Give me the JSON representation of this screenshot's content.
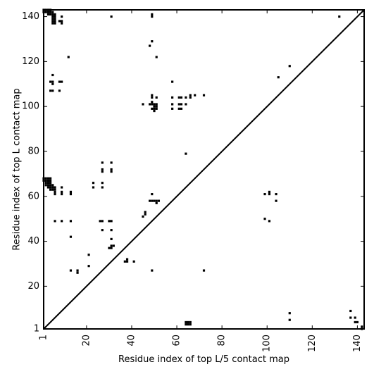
{
  "chart_data": {
    "type": "scatter",
    "title": "",
    "xlabel": "Residue index of top L/5 contact map",
    "ylabel": "Residue index of top L contact map",
    "xlim": [
      1,
      143
    ],
    "ylim": [
      1,
      143
    ],
    "x_ticks": [
      1,
      20,
      40,
      60,
      80,
      100,
      120,
      140
    ],
    "y_ticks": [
      1,
      20,
      40,
      60,
      80,
      100,
      120,
      140
    ],
    "grid": false,
    "diagonal": true,
    "marker_color": "#000000",
    "series": [
      {
        "points": [
          [
            1,
            143
          ],
          [
            2,
            143
          ],
          [
            3,
            143
          ],
          [
            4,
            143
          ],
          [
            1,
            142
          ],
          [
            2,
            142
          ],
          [
            3,
            142
          ],
          [
            4,
            142
          ],
          [
            5,
            142
          ],
          [
            3,
            141
          ],
          [
            4,
            141
          ],
          [
            5,
            141
          ],
          [
            6,
            141
          ],
          [
            5,
            140
          ],
          [
            6,
            140
          ],
          [
            5,
            139
          ],
          [
            6,
            139
          ],
          [
            5,
            138
          ],
          [
            6,
            138
          ],
          [
            5,
            137
          ],
          [
            6,
            137
          ],
          [
            9,
            140
          ],
          [
            9,
            138
          ],
          [
            9,
            137
          ],
          [
            8,
            138
          ],
          [
            31,
            140
          ],
          [
            49,
            141
          ],
          [
            49,
            140
          ],
          [
            132,
            140
          ],
          [
            49,
            129
          ],
          [
            48,
            127
          ],
          [
            51,
            122
          ],
          [
            12,
            122
          ],
          [
            5,
            114
          ],
          [
            5,
            111
          ],
          [
            4,
            111
          ],
          [
            5,
            110
          ],
          [
            9,
            111
          ],
          [
            8,
            111
          ],
          [
            4,
            107
          ],
          [
            5,
            107
          ],
          [
            8,
            107
          ],
          [
            110,
            118
          ],
          [
            105,
            113
          ],
          [
            58,
            111
          ],
          [
            49,
            105
          ],
          [
            49,
            104
          ],
          [
            51,
            104
          ],
          [
            58,
            104
          ],
          [
            61,
            104
          ],
          [
            62,
            104
          ],
          [
            64,
            104
          ],
          [
            66,
            105
          ],
          [
            66,
            104
          ],
          [
            68,
            105
          ],
          [
            72,
            105
          ],
          [
            45,
            101
          ],
          [
            48,
            101
          ],
          [
            49,
            101
          ],
          [
            50,
            101
          ],
          [
            51,
            101
          ],
          [
            58,
            101
          ],
          [
            61,
            101
          ],
          [
            62,
            101
          ],
          [
            64,
            101
          ],
          [
            49,
            102
          ],
          [
            50,
            100
          ],
          [
            51,
            100
          ],
          [
            50,
            99
          ],
          [
            51,
            99
          ],
          [
            49,
            99
          ],
          [
            50,
            98
          ],
          [
            58,
            99
          ],
          [
            61,
            99
          ],
          [
            62,
            99
          ],
          [
            64,
            79
          ],
          [
            1,
            68
          ],
          [
            2,
            68
          ],
          [
            3,
            68
          ],
          [
            4,
            68
          ],
          [
            1,
            67
          ],
          [
            2,
            67
          ],
          [
            3,
            67
          ],
          [
            4,
            67
          ],
          [
            2,
            66
          ],
          [
            3,
            66
          ],
          [
            4,
            66
          ],
          [
            2,
            65
          ],
          [
            3,
            65
          ],
          [
            4,
            65
          ],
          [
            5,
            65
          ],
          [
            3,
            64
          ],
          [
            4,
            64
          ],
          [
            5,
            64
          ],
          [
            6,
            64
          ],
          [
            4,
            63
          ],
          [
            5,
            63
          ],
          [
            6,
            63
          ],
          [
            6,
            62
          ],
          [
            6,
            61
          ],
          [
            9,
            64
          ],
          [
            9,
            62
          ],
          [
            9,
            61
          ],
          [
            13,
            62
          ],
          [
            13,
            61
          ],
          [
            23,
            66
          ],
          [
            23,
            64
          ],
          [
            27,
            66
          ],
          [
            27,
            64
          ],
          [
            27,
            75
          ],
          [
            27,
            72
          ],
          [
            27,
            71
          ],
          [
            31,
            75
          ],
          [
            31,
            72
          ],
          [
            31,
            71
          ],
          [
            49,
            61
          ],
          [
            48,
            58
          ],
          [
            49,
            58
          ],
          [
            50,
            58
          ],
          [
            51,
            58
          ],
          [
            52,
            58
          ],
          [
            51,
            57
          ],
          [
            45,
            51
          ],
          [
            46,
            52
          ],
          [
            46,
            53
          ],
          [
            6,
            49
          ],
          [
            9,
            49
          ],
          [
            13,
            49
          ],
          [
            26,
            49
          ],
          [
            27,
            49
          ],
          [
            30,
            49
          ],
          [
            31,
            49
          ],
          [
            27,
            45
          ],
          [
            31,
            45
          ],
          [
            31,
            41
          ],
          [
            13,
            42
          ],
          [
            30,
            37
          ],
          [
            31,
            37
          ],
          [
            31,
            38
          ],
          [
            32,
            38
          ],
          [
            37,
            31
          ],
          [
            38,
            31
          ],
          [
            38,
            32
          ],
          [
            41,
            31
          ],
          [
            13,
            27
          ],
          [
            16,
            27
          ],
          [
            16,
            26
          ],
          [
            21,
            34
          ],
          [
            21,
            29
          ],
          [
            49,
            27
          ],
          [
            72,
            27
          ],
          [
            99,
            61
          ],
          [
            101,
            62
          ],
          [
            101,
            61
          ],
          [
            104,
            61
          ],
          [
            104,
            58
          ],
          [
            99,
            50
          ],
          [
            101,
            49
          ],
          [
            64,
            4
          ],
          [
            65,
            4
          ],
          [
            64,
            3
          ],
          [
            65,
            3
          ],
          [
            66,
            3
          ],
          [
            66,
            4
          ],
          [
            110,
            8
          ],
          [
            110,
            5
          ],
          [
            137,
            9
          ],
          [
            137,
            6
          ],
          [
            139,
            6
          ],
          [
            139,
            4
          ],
          [
            140,
            4
          ],
          [
            142,
            2
          ],
          [
            142,
            1
          ]
        ]
      }
    ]
  }
}
